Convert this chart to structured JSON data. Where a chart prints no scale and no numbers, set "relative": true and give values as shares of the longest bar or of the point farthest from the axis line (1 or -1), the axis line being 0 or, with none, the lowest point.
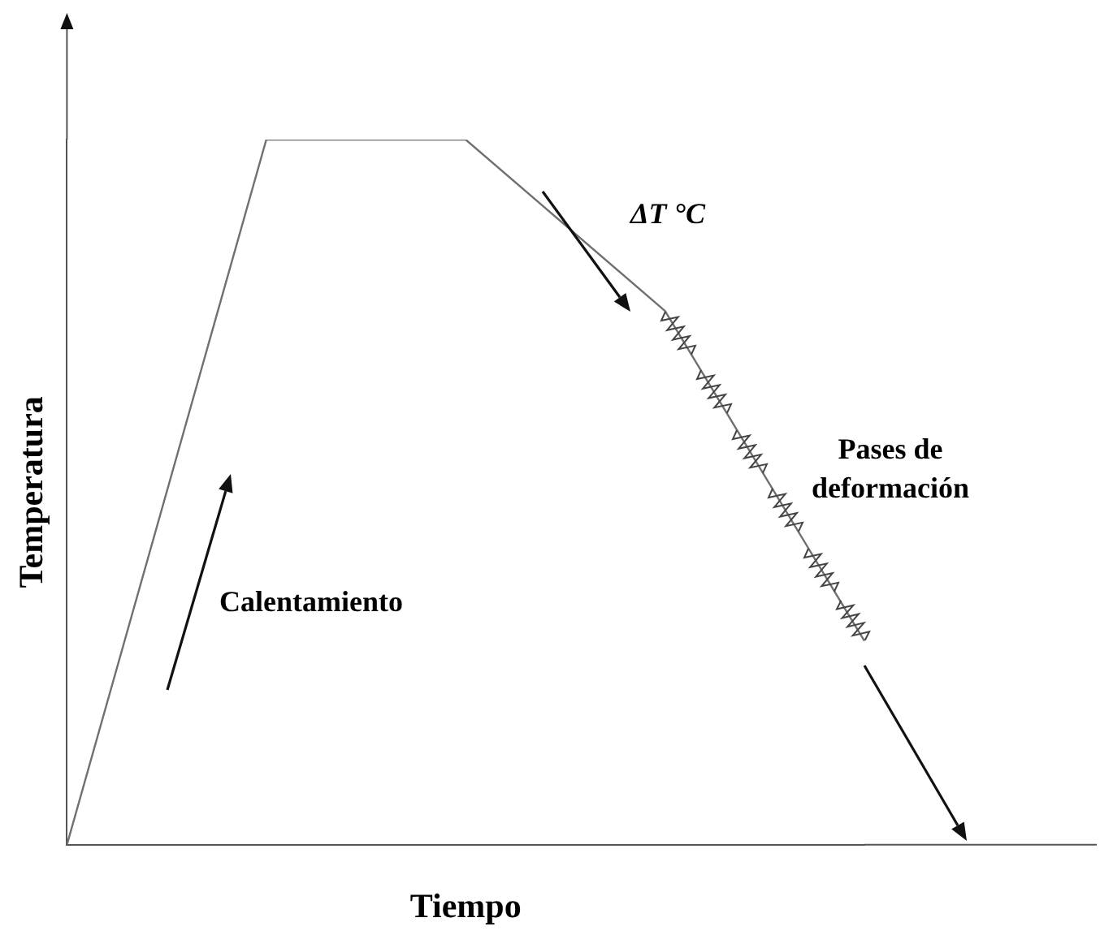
{
  "chart_data": {
    "type": "line",
    "xlabel": "Tiempo",
    "ylabel": "Temperatura",
    "categories": [
      null,
      null,
      null,
      null,
      null
    ],
    "values": [
      0,
      1,
      1,
      0.757,
      0.289
    ],
    "color": "#707070",
    "relative": true,
    "marker": "none",
    "line_style": "solid",
    "grid": false,
    "legend": false,
    "annotations": [
      "Calentamiento",
      "ΔT °C",
      "Pases de deformación"
    ]
  }
}
